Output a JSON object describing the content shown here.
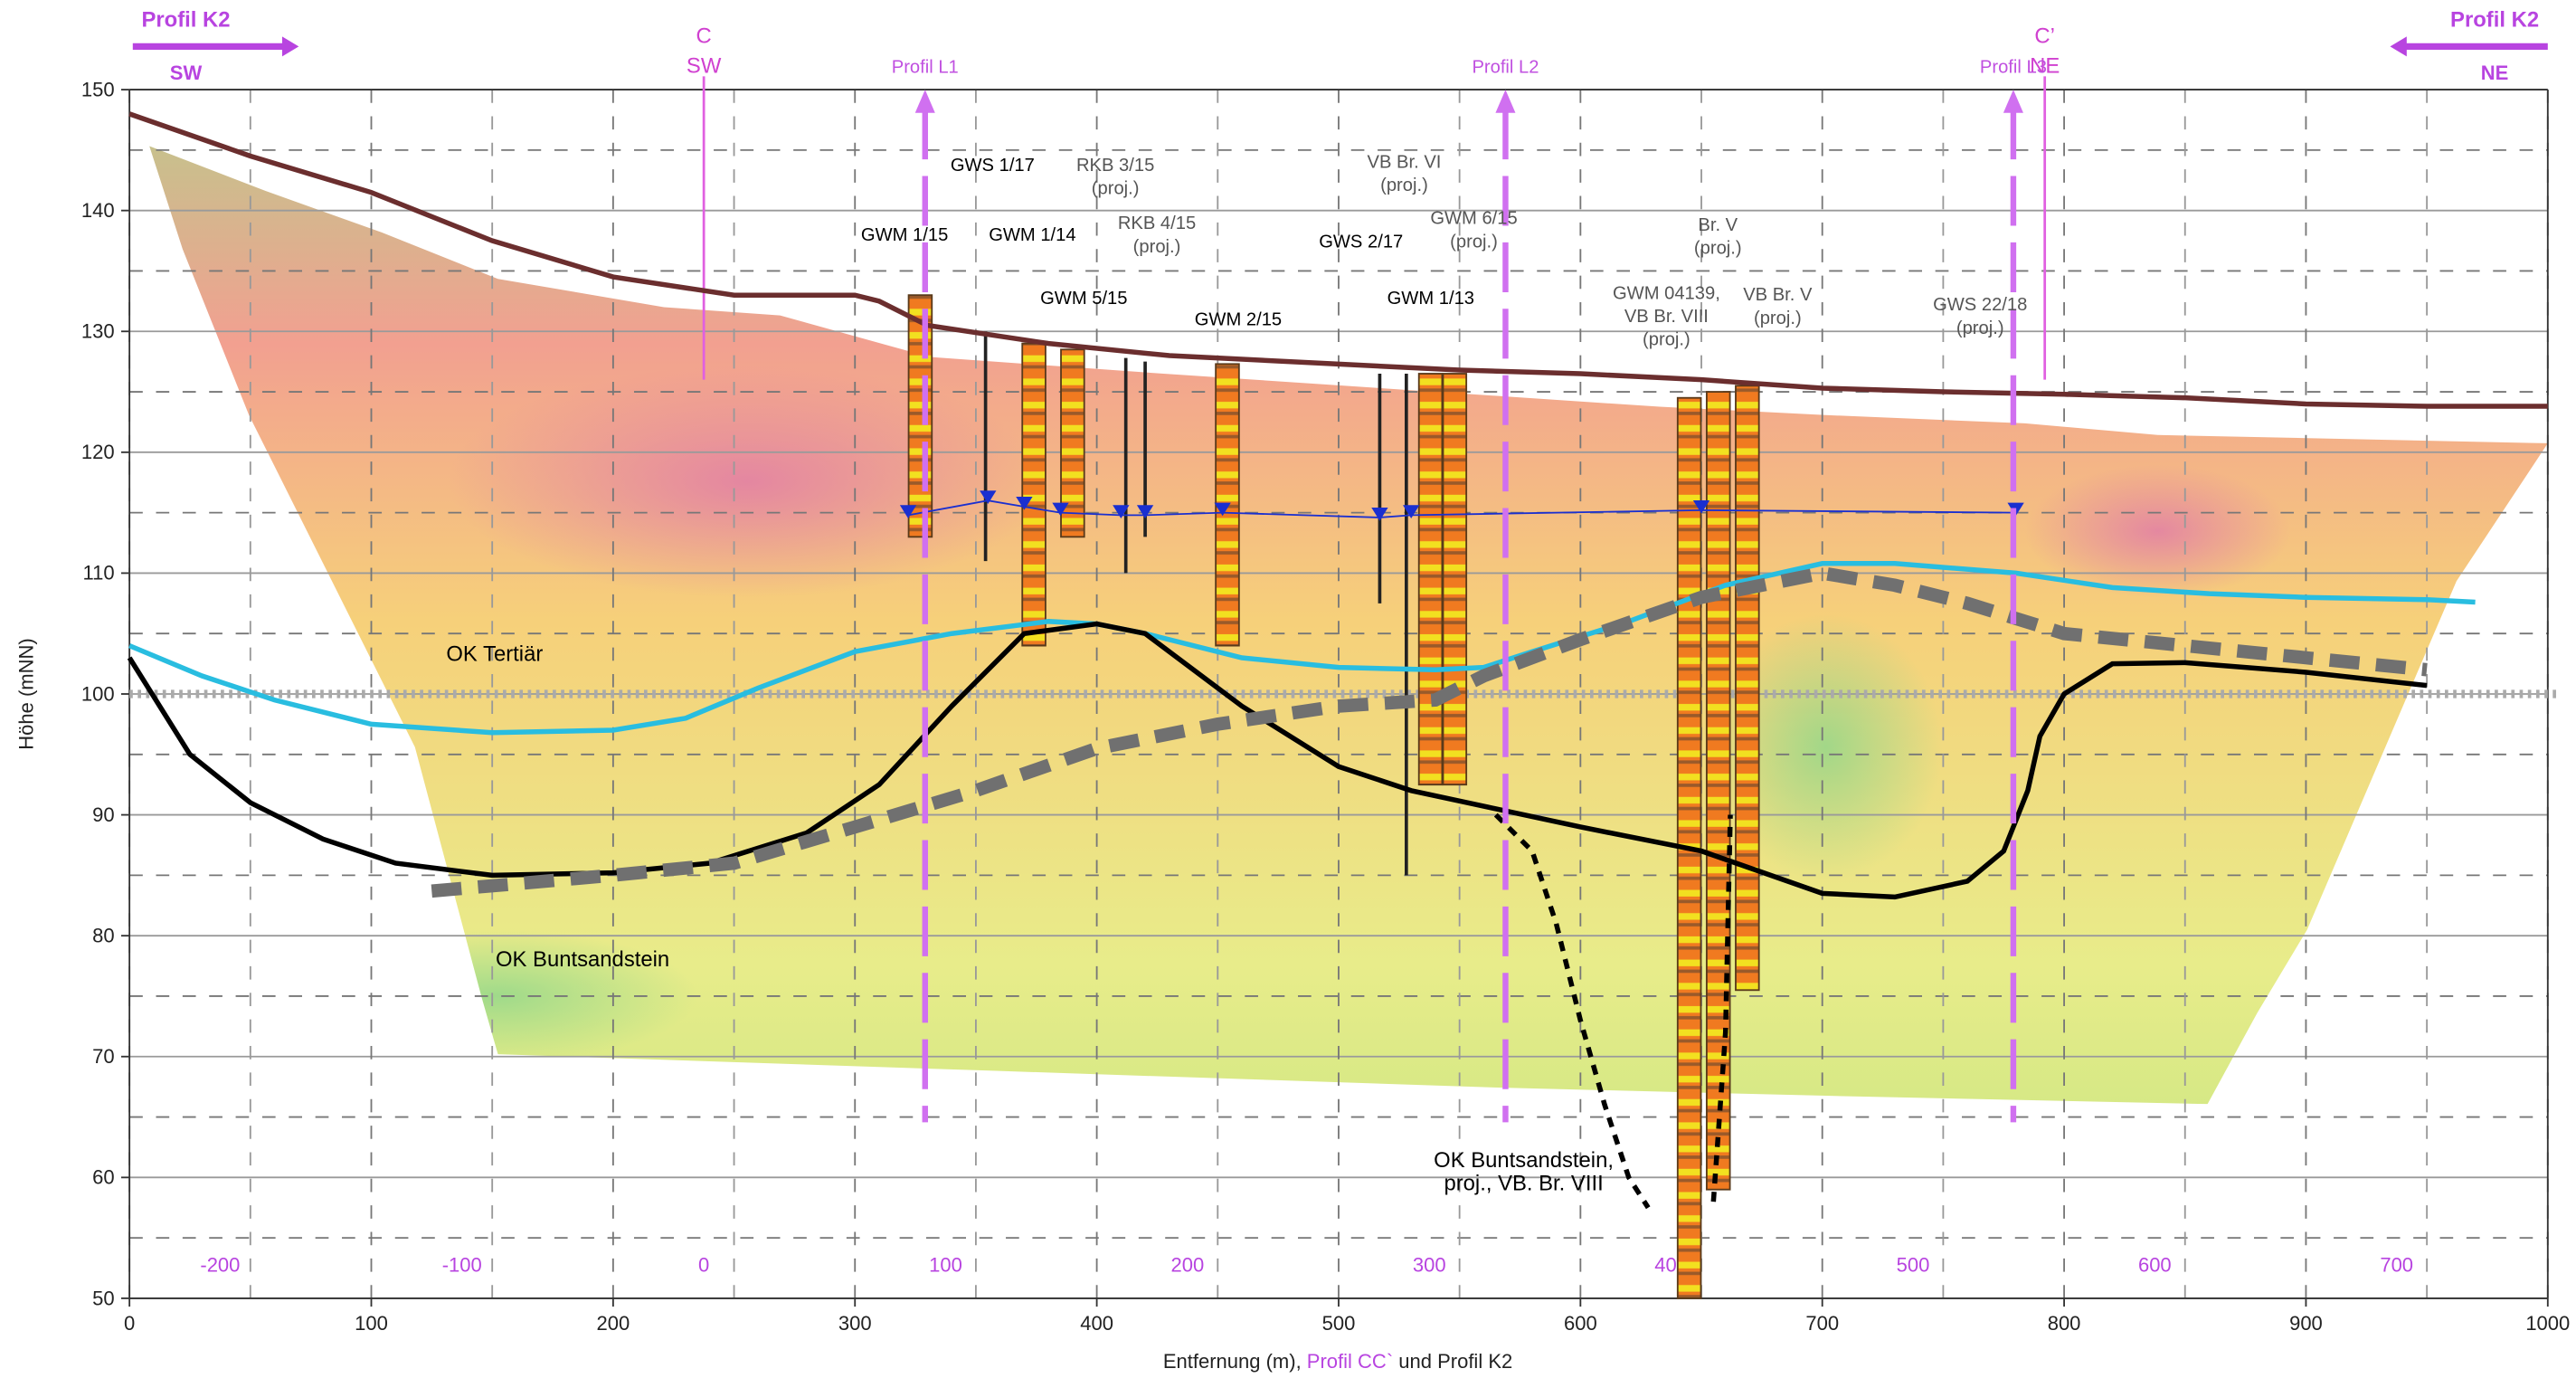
{
  "chart_data": {
    "type": "line",
    "xlabel": [
      "Entfernung (m), ",
      "Profil CC`",
      " und Profil K2"
    ],
    "ylabel": "Höhe (mNN)",
    "xlim": [
      0,
      1000
    ],
    "ylim": [
      50,
      150
    ],
    "xticks": [
      0,
      100,
      200,
      300,
      400,
      500,
      600,
      700,
      800,
      900,
      1000
    ],
    "yticks": [
      50,
      60,
      70,
      80,
      90,
      100,
      110,
      120,
      130,
      140,
      150
    ],
    "xminor": [
      50,
      150,
      250,
      350,
      450,
      550,
      650,
      750,
      850,
      950
    ],
    "yminor": [
      55,
      65,
      75,
      85,
      95,
      105,
      115,
      125,
      135,
      145
    ],
    "x2lim": [
      -237.5,
      762.5
    ],
    "x2ticks": [
      -200,
      -100,
      0,
      100,
      200,
      300,
      400,
      500,
      600,
      700
    ],
    "grid": true,
    "reference_line": 100,
    "series": [
      {
        "color": "#6b2e2e",
        "x": [
          0,
          50,
          100,
          150,
          200,
          250,
          300,
          310,
          330,
          380,
          430,
          500,
          550,
          600,
          650,
          700,
          750,
          800,
          850,
          900,
          950,
          1000
        ],
        "values": [
          148,
          144.5,
          141.5,
          137.5,
          134.5,
          133,
          133,
          132.5,
          130.5,
          129,
          128,
          127.3,
          126.8,
          126.5,
          126,
          125.3,
          125,
          124.8,
          124.5,
          124,
          123.8,
          123.8
        ]
      },
      {
        "color": "#1a2fd0",
        "markers": true,
        "x": [
          322,
          355,
          370,
          385,
          410,
          420,
          452,
          517,
          530,
          650,
          780
        ],
        "values": [
          114.8,
          116,
          115.5,
          115,
          114.8,
          114.8,
          115,
          114.6,
          114.8,
          115.2,
          115
        ]
      },
      {
        "color": "#29bde0",
        "x": [
          0,
          30,
          60,
          100,
          150,
          200,
          230,
          260,
          300,
          340,
          380,
          400,
          420,
          460,
          500,
          540,
          560,
          580,
          620,
          660,
          700,
          730,
          780,
          820,
          860,
          900,
          950,
          970
        ],
        "values": [
          104,
          101.5,
          99.5,
          97.5,
          96.8,
          97,
          98,
          100.5,
          103.5,
          105,
          106,
          105.8,
          105,
          103,
          102.2,
          102,
          102.2,
          103.5,
          106,
          109,
          110.8,
          110.8,
          110,
          108.8,
          108.3,
          108,
          107.8,
          107.6
        ]
      },
      {
        "color": "#000000",
        "x": [
          0,
          25,
          50,
          80,
          110,
          150,
          200,
          240,
          280,
          310,
          340,
          370,
          400,
          420,
          460,
          500,
          530,
          600,
          650,
          700,
          730,
          760,
          775,
          785,
          790,
          800,
          820,
          850,
          900,
          950
        ],
        "values": [
          103,
          95,
          91,
          88,
          86,
          85,
          85.2,
          86,
          88.5,
          92.5,
          99,
          105,
          105.8,
          105,
          99,
          94,
          92,
          89,
          87,
          83.5,
          83.2,
          84.5,
          87,
          92,
          96.5,
          100,
          102.5,
          102.6,
          101.8,
          100.7
        ]
      },
      {
        "color": "#707070",
        "dash": true,
        "x": [
          125,
          200,
          250,
          300,
          350,
          400,
          450,
          500,
          540,
          560,
          600,
          650,
          700,
          730,
          760,
          800,
          850,
          900,
          950
        ],
        "values": [
          83.7,
          85,
          86,
          89,
          92,
          95.5,
          97.5,
          99,
          99.5,
          101.5,
          104.5,
          108,
          110,
          109,
          107.5,
          105,
          104,
          103,
          102
        ]
      },
      {
        "color": "#000000",
        "dash": true,
        "x": [
          565,
          580,
          590,
          600,
          610,
          620,
          628,
          640,
          655,
          660,
          662
        ],
        "values": [
          90,
          87,
          81,
          73,
          66,
          60,
          57.5,
          null,
          58,
          72,
          90
        ]
      }
    ],
    "boreholes": {
      "x": [
        327,
        374,
        390,
        454,
        538,
        548,
        645,
        657,
        669
      ],
      "top": [
        133,
        129,
        128.5,
        127.3,
        126.5,
        126.5,
        124.5,
        125,
        125.5
      ],
      "bottom": [
        113,
        104,
        113,
        104,
        92.5,
        92.5,
        50,
        59,
        75.5
      ]
    },
    "wells": {
      "x": [
        354,
        412,
        420,
        517,
        528
      ],
      "top": [
        130,
        127.8,
        127.5,
        126.5,
        126.5
      ],
      "bottom": [
        111,
        110,
        113,
        107.5,
        85
      ]
    },
    "profile_lines": [
      {
        "label": "Profil L1",
        "x": 329
      },
      {
        "label": "Profil L2",
        "x": 569
      },
      {
        "label": "Profil L3",
        "x": 779
      }
    ],
    "section_lines": [
      {
        "label": [
          "C",
          "SW"
        ],
        "x": 237.5
      },
      {
        "label": [
          "C’",
          "NE"
        ],
        "x": 792
      }
    ],
    "corner_labels": {
      "left": [
        "Profil K2",
        "SW"
      ],
      "right": [
        "Profil K2",
        "NE"
      ]
    },
    "annotations": [
      [
        "GWM 1/15"
      ],
      [
        "GWS 1/17"
      ],
      [
        "RKB 3/15",
        "(proj.)"
      ],
      [
        "GWM 1/14"
      ],
      [
        "RKB 4/15",
        "(proj.)"
      ],
      [
        "GWM 5/15"
      ],
      [
        "GWM 2/15"
      ],
      [
        "VB Br. VI",
        "(proj.)"
      ],
      [
        "GWS 2/17"
      ],
      [
        "GWM 6/15",
        "(proj.)"
      ],
      [
        "GWM 1/13"
      ],
      [
        "Br. V",
        "(proj.)"
      ],
      [
        "GWM 04139,",
        "VB Br. VIII",
        "(proj.)"
      ],
      [
        "VB Br. V",
        "(proj.)"
      ],
      [
        "GWS 22/18",
        "(proj.)"
      ],
      [
        "OK Tertiär"
      ],
      [
        "OK Buntsandstein"
      ],
      [
        "OK Buntsandstein,",
        "proj., VB. Br. VIII"
      ]
    ]
  }
}
